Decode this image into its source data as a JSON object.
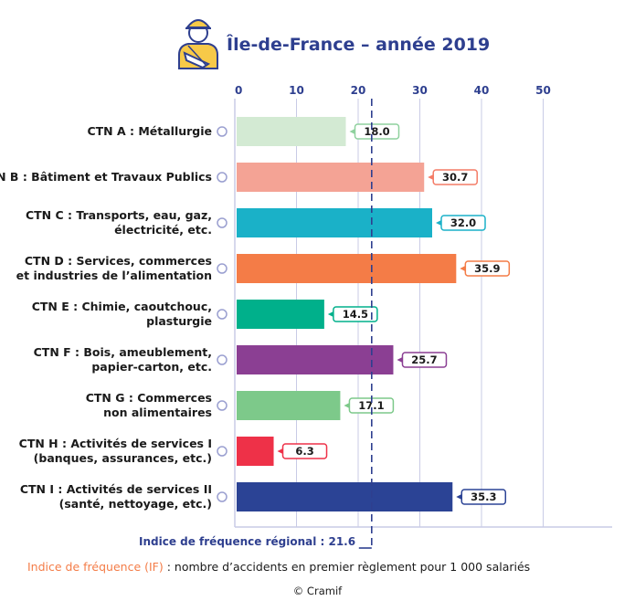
{
  "title": "Île-de-France – année 2019",
  "chart_data": {
    "type": "bar",
    "orientation": "horizontal",
    "title": "Île-de-France – année 2019",
    "xlim": [
      0,
      50
    ],
    "xticks": [
      0,
      10,
      20,
      30,
      40,
      50
    ],
    "grid": true,
    "categories": [
      [
        "CTN A : Métallurgie"
      ],
      [
        "CTN B : Bâtiment et Travaux Publics"
      ],
      [
        "CTN C : Transports, eau, gaz,",
        "électricité, etc."
      ],
      [
        "CTN D : Services, commerces",
        "et industries de l’alimentation"
      ],
      [
        "CTN E : Chimie, caoutchouc,",
        "plasturgie"
      ],
      [
        "CTN F : Bois, ameublement,",
        "papier-carton, etc."
      ],
      [
        "CTN G : Commerces",
        "non alimentaires"
      ],
      [
        "CTN H : Activités de services I",
        "(banques, assurances, etc.)"
      ],
      [
        "CTN I : Activités de services II",
        "(santé, nettoyage, etc.)"
      ]
    ],
    "values": [
      18.0,
      30.7,
      32.0,
      35.9,
      14.5,
      25.7,
      17.1,
      6.3,
      35.3
    ],
    "value_labels": [
      "18.0",
      "30.7",
      "32.0",
      "35.9",
      "14.5",
      "25.7",
      "17.1",
      "6.3",
      "35.3"
    ],
    "colors": [
      "#d3ead3",
      "#f4a395",
      "#1ab1c8",
      "#f47c47",
      "#00b08b",
      "#8b3f93",
      "#7dc98a",
      "#ee3148",
      "#2b4395"
    ],
    "label_border_colors": [
      "#8fd19e",
      "#f47c67",
      "#1ab1c8",
      "#f47c47",
      "#00b08b",
      "#8b3f93",
      "#7dc98a",
      "#ee3148",
      "#2b4395"
    ],
    "reference_line": {
      "value": 21.6,
      "label": "Indice de fréquence régional : 21.6",
      "color": "#2e3f8f"
    }
  },
  "footer": {
    "definition_highlight": "Indice de fréquence (IF)",
    "definition_text": " : nombre d’accidents en premier règlement pour 1 000 salariés",
    "credit": "© Cramif"
  },
  "colors": {
    "axis": "#2e3f8f",
    "grid": "#c9cbe6",
    "circle": "#9a9fd0"
  },
  "icons": {
    "header": "worker-with-sling-icon"
  }
}
